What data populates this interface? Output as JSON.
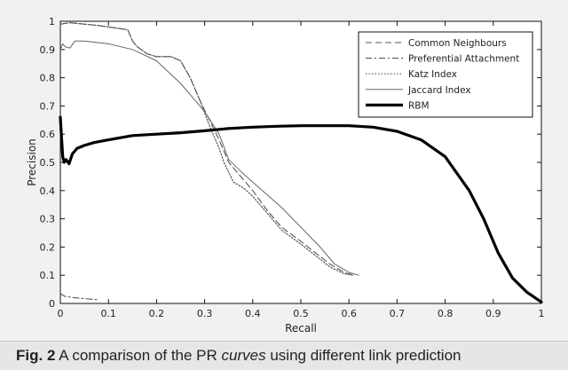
{
  "caption": {
    "label": "Fig. 2",
    "text_before": "A comparison of the PR",
    "emphasis": "curves",
    "text_after": "using different link prediction"
  },
  "chart_data": {
    "type": "line",
    "title": "",
    "xlabel": "Recall",
    "ylabel": "Precision",
    "xlim": [
      0,
      1
    ],
    "ylim": [
      0,
      1
    ],
    "xticks": [
      0,
      0.1,
      0.2,
      0.3,
      0.4,
      0.5,
      0.6,
      0.7,
      0.8,
      0.9,
      1
    ],
    "yticks": [
      0,
      0.1,
      0.2,
      0.3,
      0.4,
      0.5,
      0.6,
      0.7,
      0.8,
      0.9,
      1
    ],
    "grid": false,
    "legend_position": "top-right",
    "series": [
      {
        "name": "Common Neighbours",
        "style": "dashed",
        "color": "#555555",
        "points": [
          [
            0,
            0.99
          ],
          [
            0.02,
            0.995
          ],
          [
            0.05,
            0.99
          ],
          [
            0.08,
            0.985
          ],
          [
            0.1,
            0.98
          ],
          [
            0.12,
            0.975
          ],
          [
            0.14,
            0.97
          ],
          [
            0.15,
            0.93
          ],
          [
            0.16,
            0.91
          ],
          [
            0.18,
            0.885
          ],
          [
            0.2,
            0.875
          ],
          [
            0.23,
            0.875
          ],
          [
            0.25,
            0.86
          ],
          [
            0.27,
            0.8
          ],
          [
            0.29,
            0.72
          ],
          [
            0.31,
            0.65
          ],
          [
            0.33,
            0.58
          ],
          [
            0.35,
            0.5
          ],
          [
            0.37,
            0.46
          ],
          [
            0.4,
            0.4
          ],
          [
            0.43,
            0.33
          ],
          [
            0.46,
            0.27
          ],
          [
            0.5,
            0.22
          ],
          [
            0.53,
            0.18
          ],
          [
            0.56,
            0.14
          ],
          [
            0.59,
            0.11
          ],
          [
            0.61,
            0.1
          ]
        ]
      },
      {
        "name": "Preferential Attachment",
        "style": "dashdot",
        "color": "#555555",
        "points": [
          [
            0,
            0.035
          ],
          [
            0.01,
            0.025
          ],
          [
            0.03,
            0.02
          ],
          [
            0.05,
            0.017
          ],
          [
            0.07,
            0.014
          ],
          [
            0.08,
            0.013
          ]
        ]
      },
      {
        "name": "Katz Index",
        "style": "dotted",
        "color": "#555555",
        "points": [
          [
            0,
            0.99
          ],
          [
            0.02,
            0.995
          ],
          [
            0.05,
            0.99
          ],
          [
            0.08,
            0.985
          ],
          [
            0.1,
            0.98
          ],
          [
            0.12,
            0.975
          ],
          [
            0.14,
            0.97
          ],
          [
            0.15,
            0.93
          ],
          [
            0.16,
            0.91
          ],
          [
            0.18,
            0.885
          ],
          [
            0.2,
            0.875
          ],
          [
            0.23,
            0.875
          ],
          [
            0.25,
            0.86
          ],
          [
            0.27,
            0.8
          ],
          [
            0.29,
            0.72
          ],
          [
            0.31,
            0.63
          ],
          [
            0.33,
            0.55
          ],
          [
            0.34,
            0.5
          ],
          [
            0.36,
            0.43
          ],
          [
            0.38,
            0.41
          ],
          [
            0.4,
            0.38
          ],
          [
            0.43,
            0.32
          ],
          [
            0.46,
            0.26
          ],
          [
            0.5,
            0.21
          ],
          [
            0.53,
            0.17
          ],
          [
            0.56,
            0.13
          ],
          [
            0.59,
            0.105
          ],
          [
            0.61,
            0.1
          ]
        ]
      },
      {
        "name": "Jaccard Index",
        "style": "solid",
        "color": "#666666",
        "points": [
          [
            0,
            0.9
          ],
          [
            0.005,
            0.92
          ],
          [
            0.01,
            0.91
          ],
          [
            0.02,
            0.905
          ],
          [
            0.03,
            0.93
          ],
          [
            0.05,
            0.93
          ],
          [
            0.1,
            0.92
          ],
          [
            0.15,
            0.9
          ],
          [
            0.2,
            0.86
          ],
          [
            0.25,
            0.78
          ],
          [
            0.3,
            0.68
          ],
          [
            0.33,
            0.6
          ],
          [
            0.35,
            0.51
          ],
          [
            0.38,
            0.46
          ],
          [
            0.42,
            0.4
          ],
          [
            0.46,
            0.34
          ],
          [
            0.5,
            0.27
          ],
          [
            0.54,
            0.2
          ],
          [
            0.57,
            0.14
          ],
          [
            0.6,
            0.11
          ],
          [
            0.62,
            0.1
          ]
        ]
      },
      {
        "name": "RBM",
        "style": "thick",
        "color": "#000000",
        "points": [
          [
            0,
            0.66
          ],
          [
            0.002,
            0.6
          ],
          [
            0.005,
            0.52
          ],
          [
            0.008,
            0.5
          ],
          [
            0.012,
            0.51
          ],
          [
            0.018,
            0.495
          ],
          [
            0.025,
            0.53
          ],
          [
            0.035,
            0.55
          ],
          [
            0.05,
            0.56
          ],
          [
            0.07,
            0.57
          ],
          [
            0.1,
            0.58
          ],
          [
            0.15,
            0.595
          ],
          [
            0.2,
            0.6
          ],
          [
            0.25,
            0.605
          ],
          [
            0.3,
            0.612
          ],
          [
            0.35,
            0.62
          ],
          [
            0.4,
            0.625
          ],
          [
            0.45,
            0.628
          ],
          [
            0.5,
            0.63
          ],
          [
            0.55,
            0.63
          ],
          [
            0.6,
            0.63
          ],
          [
            0.65,
            0.625
          ],
          [
            0.7,
            0.61
          ],
          [
            0.75,
            0.58
          ],
          [
            0.8,
            0.52
          ],
          [
            0.85,
            0.4
          ],
          [
            0.88,
            0.3
          ],
          [
            0.91,
            0.18
          ],
          [
            0.94,
            0.09
          ],
          [
            0.97,
            0.04
          ],
          [
            1,
            0.005
          ]
        ]
      }
    ]
  }
}
